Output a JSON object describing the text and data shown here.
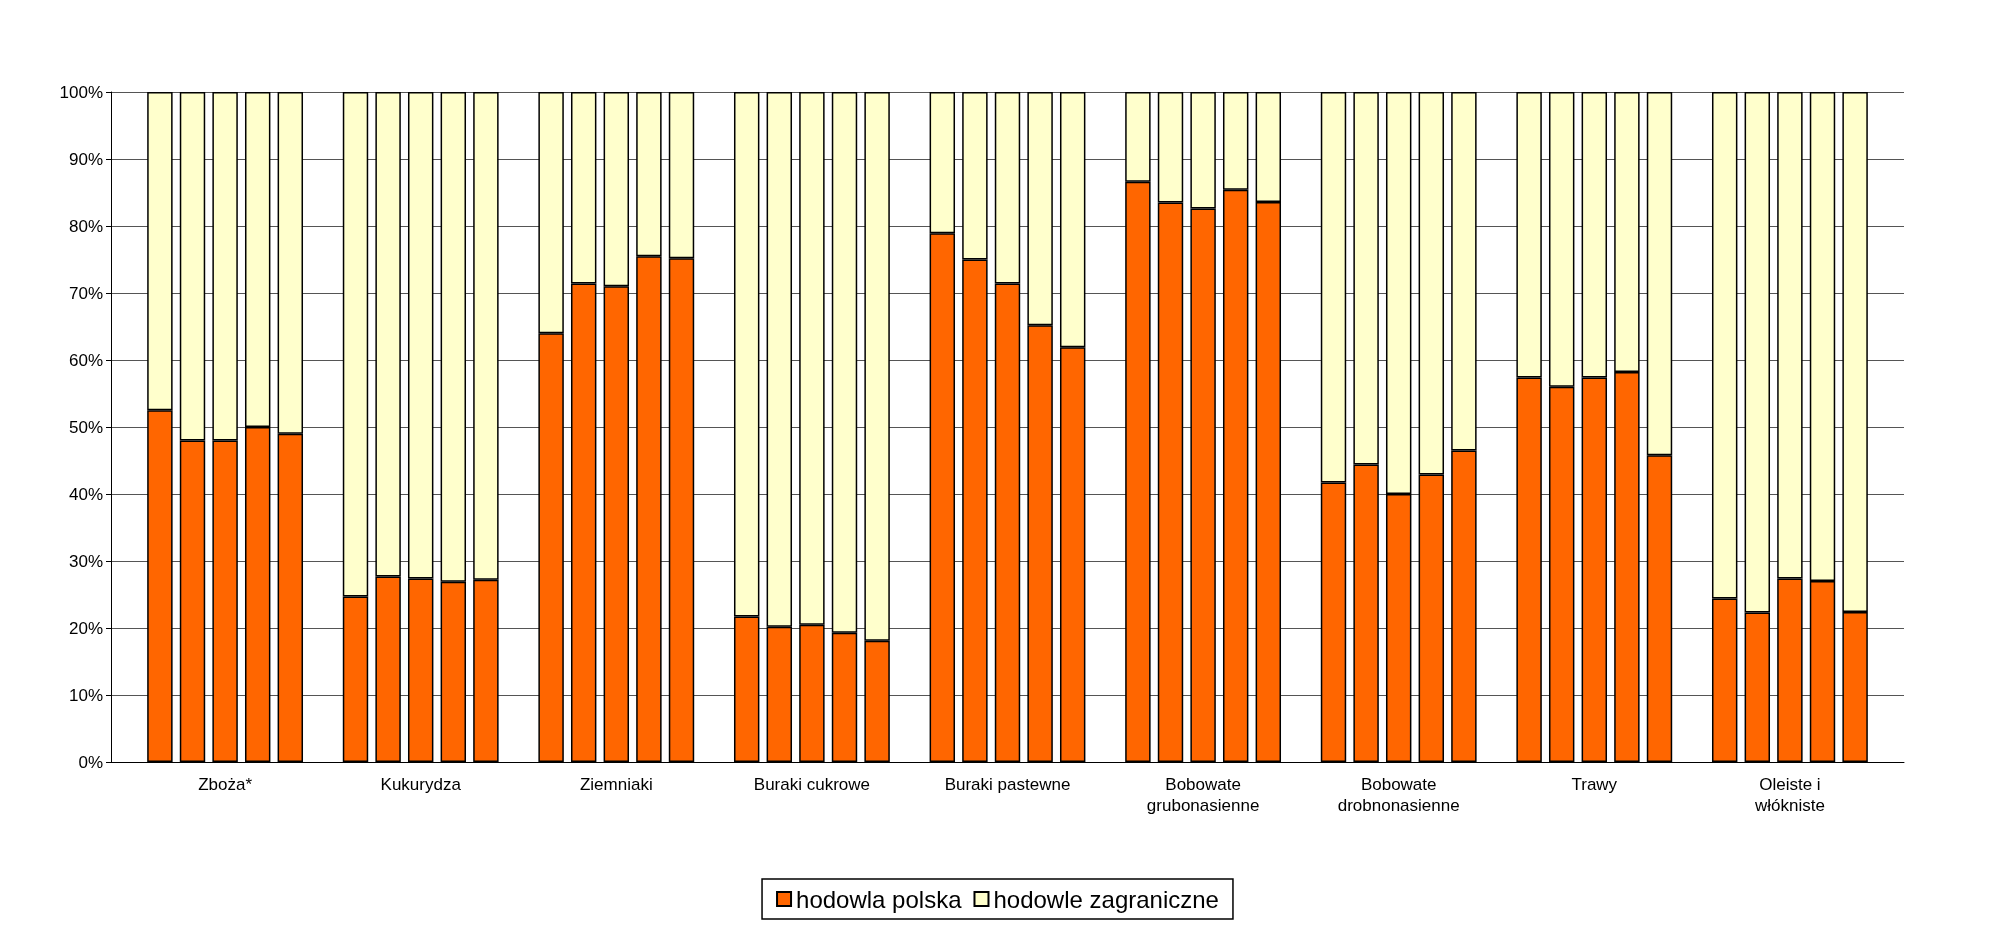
{
  "chart_data": {
    "type": "bar",
    "stacked": true,
    "grid": "y",
    "legend": "bottom",
    "categories": [
      null,
      null,
      null,
      "Zboża*",
      null,
      null,
      null,
      null,
      null,
      "Kukurydza",
      null,
      null,
      null,
      null,
      null,
      "Ziemniaki",
      null,
      null,
      null,
      null,
      null,
      "Buraki cukrowe",
      null,
      null,
      null,
      null,
      null,
      "Buraki pastewne",
      null,
      null,
      null,
      null,
      null,
      "Bobowate\ngrubonasienne",
      null,
      null,
      null,
      null,
      null,
      "Bobowate\ndrobnonasienne",
      null,
      null,
      null,
      null,
      null,
      "Trawy",
      null,
      null,
      null,
      null,
      null,
      "Oleiste i\nwłókniste",
      null,
      null,
      null
    ],
    "ylim": [
      0,
      100
    ],
    "yticks": [
      {
        "value": 0,
        "label": "0%"
      },
      {
        "value": 10,
        "label": "10%"
      },
      {
        "value": 20,
        "label": "20%"
      },
      {
        "value": 30,
        "label": "30%"
      },
      {
        "value": 40,
        "label": "40%"
      },
      {
        "value": 50,
        "label": "50%"
      },
      {
        "value": 60,
        "label": "60%"
      },
      {
        "value": 70,
        "label": "70%"
      },
      {
        "value": 80,
        "label": "80%"
      },
      {
        "value": 90,
        "label": "90%"
      },
      {
        "value": 100,
        "label": "100%"
      }
    ],
    "series": [
      {
        "name": "hodowla polska",
        "color": "#ff6600",
        "values": [
          null,
          52.5,
          48,
          48,
          50,
          49,
          null,
          24.7,
          27.7,
          27.4,
          26.9,
          27.2,
          null,
          64,
          71.4,
          71,
          75.5,
          75.2,
          null,
          21.7,
          20.2,
          20.5,
          19.3,
          18.1,
          null,
          78.9,
          75,
          71.4,
          65.2,
          61.9,
          null,
          86.6,
          83.5,
          82.6,
          85.4,
          83.6,
          null,
          41.7,
          44.4,
          40,
          42.9,
          46.5,
          null,
          57.4,
          56,
          57.4,
          58.2,
          45.8,
          null,
          24.4,
          22.3,
          27.4,
          27,
          22.4,
          null
        ]
      },
      {
        "name": "hodowle zagraniczne",
        "color": "#ffffcc",
        "values": [
          null,
          47.5,
          52,
          52,
          50,
          51,
          null,
          75.3,
          72.3,
          72.6,
          73.1,
          72.8,
          null,
          36,
          28.6,
          29,
          24.5,
          24.8,
          null,
          78.3,
          79.8,
          79.5,
          80.7,
          81.9,
          null,
          21.1,
          25,
          28.6,
          34.8,
          38.1,
          null,
          13.4,
          16.5,
          17.4,
          14.6,
          16.4,
          null,
          58.3,
          55.6,
          60,
          57.1,
          53.5,
          null,
          42.6,
          44,
          42.6,
          41.8,
          54.2,
          null,
          75.6,
          77.7,
          72.6,
          73,
          77.6,
          null
        ]
      }
    ]
  }
}
